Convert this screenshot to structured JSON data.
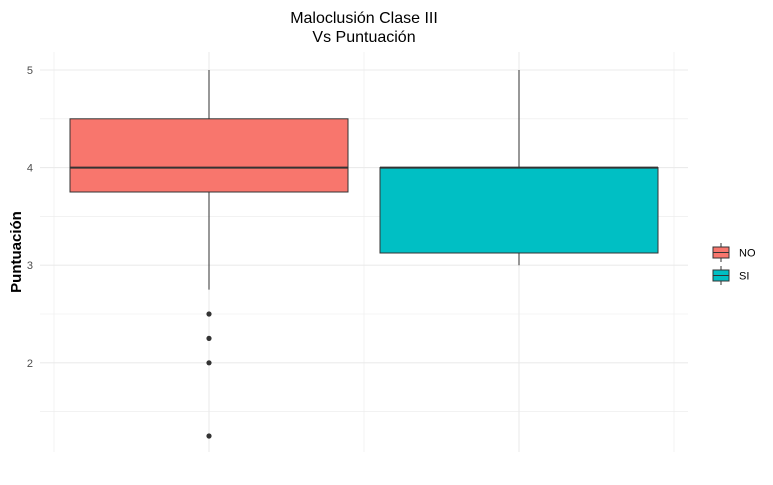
{
  "chart_data": {
    "type": "boxplot",
    "title": "Maloclusión Clase III",
    "subtitle": "Vs Puntuación",
    "xlabel": "",
    "ylabel": "Puntuación",
    "ylim": [
      1.1,
      5.1
    ],
    "y_ticks": [
      2,
      3,
      4,
      5
    ],
    "grid": true,
    "legend_position": "right",
    "series": [
      {
        "name": "NO",
        "color": "#F8766D",
        "min": 2.75,
        "q1": 3.75,
        "median": 4.0,
        "q3": 4.5,
        "max": 5.0,
        "outliers": [
          2.5,
          2.25,
          2.0,
          1.25
        ]
      },
      {
        "name": "SI",
        "color": "#00BFC4",
        "min": 3.0,
        "q1": 3.125,
        "median": 4.0,
        "q3": 4.0,
        "max": 5.0,
        "outliers": []
      }
    ]
  }
}
